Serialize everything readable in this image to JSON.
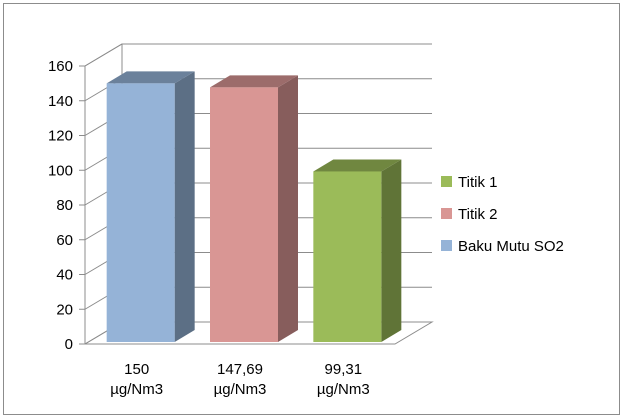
{
  "chart_data": {
    "type": "bar",
    "title": "",
    "xlabel": "",
    "ylabel": "",
    "ylim": [
      0,
      160
    ],
    "yticks": [
      0,
      20,
      40,
      60,
      80,
      100,
      120,
      140,
      160
    ],
    "categories": [
      [
        "150",
        "µg/Nm3"
      ],
      [
        "147,69",
        "µg/Nm3"
      ],
      [
        "99,31",
        "µg/Nm3"
      ]
    ],
    "values": [
      150,
      147.69,
      99.31
    ],
    "bar_colors": [
      "#95b3d7",
      "#d99694",
      "#9bbb59"
    ],
    "grid": true,
    "legend_position": "right",
    "legend": [
      {
        "name": "Titik 1",
        "color": "#9bbb59"
      },
      {
        "name": "Titik 2",
        "color": "#d99694"
      },
      {
        "name": "Baku Mutu SO2",
        "color": "#95b3d7"
      }
    ]
  }
}
